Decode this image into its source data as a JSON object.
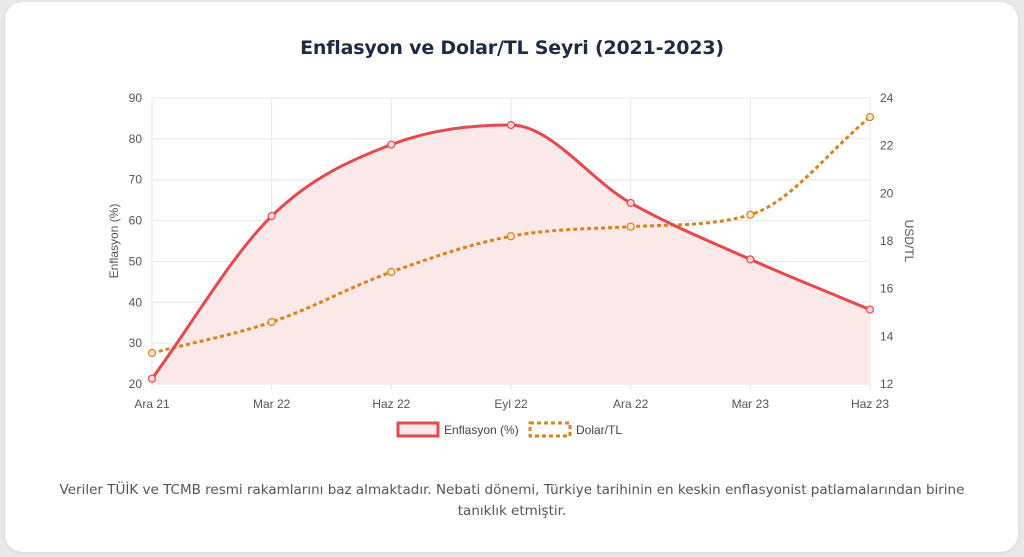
{
  "title": "Enflasyon ve Dolar/TL Seyri (2021-2023)",
  "note": "Veriler TÜİK ve TCMB resmi rakamlarını baz almaktadır. Nebati dönemi, Türkiye tarihinin en keskin enflasyonist patlamalarından birine tanıklık etmiştir.",
  "colors": {
    "inflation": "#e5484d",
    "inflation_fill": "#fbe8e8",
    "usd": "#d9821e",
    "grid": "#e6e6e6"
  },
  "chart_data": {
    "type": "line",
    "categories": [
      "Ara 21",
      "Mar 22",
      "Haz 22",
      "Eyl 22",
      "Ara 22",
      "Mar 23",
      "Haz 23"
    ],
    "series": [
      {
        "name": "Enflasyon (%)",
        "values": [
          21.3,
          61.1,
          78.6,
          83.4,
          64.3,
          50.5,
          38.2
        ],
        "axis": "left",
        "style": "solid-filled"
      },
      {
        "name": "Dolar/TL",
        "values": [
          13.3,
          14.6,
          16.7,
          18.2,
          18.6,
          19.1,
          23.2
        ],
        "axis": "right",
        "style": "dotted"
      }
    ],
    "ylabel": "Enflasyon (%)",
    "ylabel_right": "USD/TL",
    "ylim": [
      20,
      90
    ],
    "yticks": [
      "20",
      "30",
      "40",
      "50",
      "60",
      "70",
      "80",
      "90"
    ],
    "ylim_right": [
      12,
      24
    ],
    "yticks_right": [
      "12",
      "14",
      "16",
      "18",
      "20",
      "22",
      "24"
    ],
    "grid": true,
    "legend_position": "bottom"
  }
}
